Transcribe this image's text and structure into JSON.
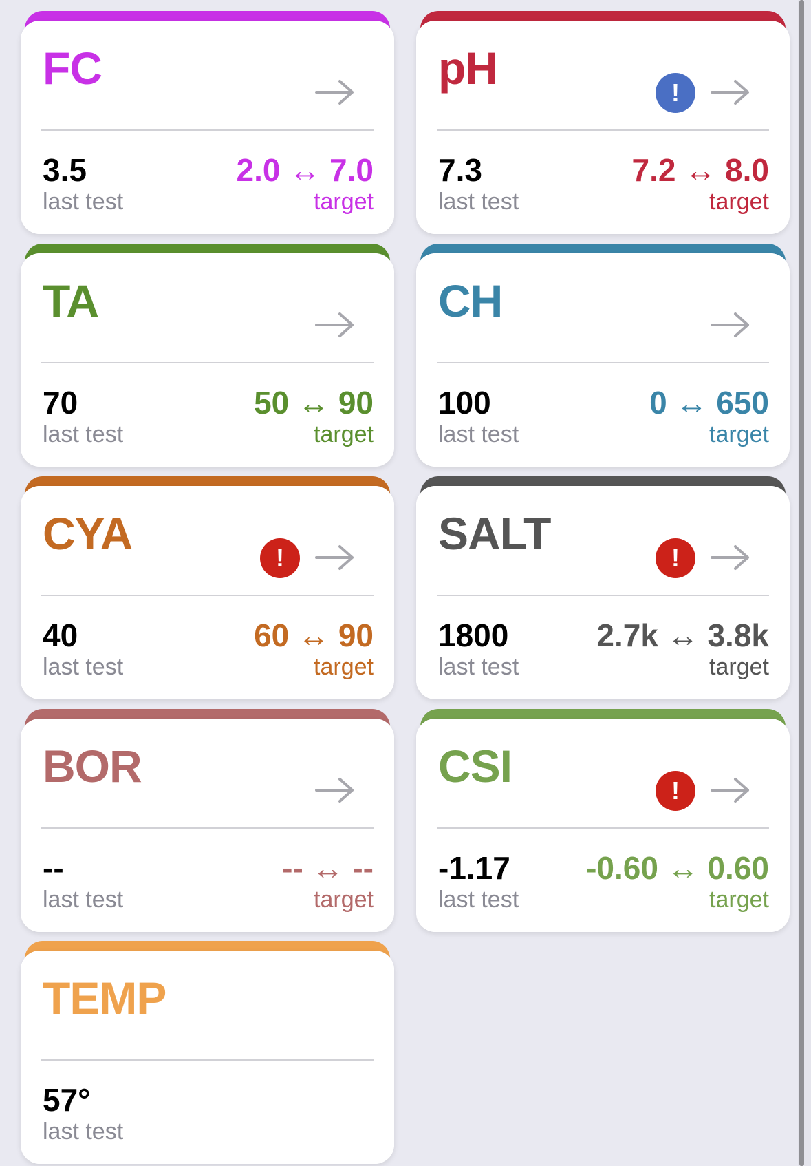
{
  "cards": [
    {
      "title": "FC",
      "value": "3.5",
      "value_label": "last test",
      "range": "2.0 ↔ 7.0",
      "target_label": "target",
      "alert": null,
      "accent": "#c831e6",
      "range_color": "#c831e6"
    },
    {
      "title": "pH",
      "value": "7.3",
      "value_label": "last test",
      "range": "7.2 ↔ 8.0",
      "target_label": "target",
      "alert": "blue",
      "accent": "#c0283e",
      "range_color": "#c0283e"
    },
    {
      "title": "TA",
      "value": "70",
      "value_label": "last test",
      "range": "50 ↔ 90",
      "target_label": "target",
      "alert": null,
      "accent": "#5a8f2e",
      "range_color": "#5a8f2e"
    },
    {
      "title": "CH",
      "value": "100",
      "value_label": "last test",
      "range": "0 ↔ 650",
      "target_label": "target",
      "alert": null,
      "accent": "#3a85a8",
      "range_color": "#3a85a8"
    },
    {
      "title": "CYA",
      "value": "40",
      "value_label": "last test",
      "range": "60 ↔ 90",
      "target_label": "target",
      "alert": "red",
      "accent": "#c36a22",
      "range_color": "#c36a22"
    },
    {
      "title": "SALT",
      "value": "1800",
      "value_label": "last test",
      "range": "2.7k ↔ 3.8k",
      "target_label": "target",
      "alert": "red",
      "accent": "#555555",
      "range_color": "#555555"
    },
    {
      "title": "BOR",
      "value": "--",
      "value_label": "last test",
      "range": "-- ↔ --",
      "target_label": "target",
      "alert": null,
      "accent": "#b36a6a",
      "range_color": "#b36a6a"
    },
    {
      "title": "CSI",
      "value": "-1.17",
      "value_label": "last test",
      "range": "-0.60 ↔ 0.60",
      "target_label": "target",
      "alert": "red",
      "accent": "#76a24e",
      "range_color": "#76a24e"
    },
    {
      "title": "TEMP",
      "value": "57°",
      "value_label": "last test",
      "range": null,
      "target_label": null,
      "alert": null,
      "accent": "#efa24d",
      "range_color": "#efa24d",
      "has_arrow": false
    }
  ],
  "alert_glyph": "!",
  "icons": {
    "arrow": "arrow-right-icon",
    "alert": "exclamation-icon"
  }
}
